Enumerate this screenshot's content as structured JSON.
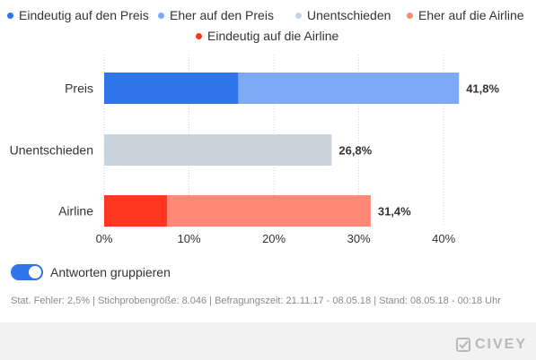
{
  "legend": [
    {
      "label": "Eindeutig auf den Preis",
      "color": "#2f74e8"
    },
    {
      "label": "Eher auf den Preis",
      "color": "#7eaaf5"
    },
    {
      "label": "Unentschieden",
      "color": "#c8d3dc"
    },
    {
      "label": "Eher auf die Airline",
      "color": "#ff8877"
    },
    {
      "label": "Eindeutig auf die Airline",
      "color": "#ff3620"
    }
  ],
  "chart_data": {
    "type": "bar",
    "orientation": "horizontal",
    "stacked": true,
    "categories": [
      "Preis",
      "Unentschieden",
      "Airline"
    ],
    "series": [
      {
        "name": "Eindeutig auf den Preis",
        "color": "#2f74e8",
        "values": [
          15.8,
          0,
          0
        ]
      },
      {
        "name": "Eher auf den Preis",
        "color": "#7eaaf5",
        "values": [
          26.0,
          0,
          0
        ]
      },
      {
        "name": "Unentschieden",
        "color": "#c8d3dc",
        "values": [
          0,
          26.8,
          0
        ]
      },
      {
        "name": "Eindeutig auf die Airline",
        "color": "#ff3620",
        "values": [
          0,
          0,
          7.4
        ]
      },
      {
        "name": "Eher auf die Airline",
        "color": "#ff8877",
        "values": [
          0,
          0,
          24.0
        ]
      }
    ],
    "totals": [
      "41,8%",
      "26,8%",
      "31,4%"
    ],
    "total_values": [
      41.8,
      26.8,
      31.4
    ],
    "xlim": [
      0,
      44
    ],
    "xticks": [
      0,
      10,
      20,
      30,
      40
    ],
    "xtick_labels": [
      "0%",
      "10%",
      "20%",
      "30%",
      "40%"
    ],
    "grid": "vertical-dotted",
    "legend_position": "top"
  },
  "toggle": {
    "label": "Antworten gruppieren",
    "on": true
  },
  "stats": "Stat. Fehler: 2,5% | Stichprobengröße: 8.046 | Befragungszeit: 21.11.17 - 08.05.18 | Stand: 08.05.18 - 00:18 Uhr",
  "brand": {
    "name": "CIVEY",
    "icon": "civey-check-icon"
  }
}
